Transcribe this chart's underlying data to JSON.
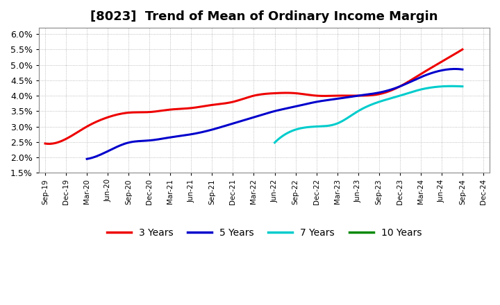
{
  "title": "[8023]  Trend of Mean of Ordinary Income Margin",
  "title_fontsize": 13,
  "background_color": "#ffffff",
  "plot_bg_color": "#ffffff",
  "grid_color": "#aaaaaa",
  "ylim": [
    0.015,
    0.062
  ],
  "yticks": [
    0.015,
    0.02,
    0.025,
    0.03,
    0.035,
    0.04,
    0.045,
    0.05,
    0.055,
    0.06
  ],
  "ytick_labels": [
    "1.5%",
    "2.0%",
    "2.5%",
    "3.0%",
    "3.5%",
    "4.0%",
    "4.5%",
    "5.0%",
    "5.5%",
    "6.0%"
  ],
  "x_labels": [
    "Sep-19",
    "Dec-19",
    "Mar-20",
    "Jun-20",
    "Sep-20",
    "Dec-20",
    "Mar-21",
    "Jun-21",
    "Sep-21",
    "Dec-21",
    "Mar-22",
    "Jun-22",
    "Sep-22",
    "Dec-22",
    "Mar-23",
    "Jun-23",
    "Sep-23",
    "Dec-23",
    "Mar-24",
    "Jun-24",
    "Sep-24",
    "Dec-24"
  ],
  "series": {
    "3 Years": {
      "color": "#ee0000",
      "data_x": [
        0,
        1,
        2,
        3,
        4,
        5,
        6,
        7,
        8,
        9,
        10,
        11,
        12,
        13,
        14,
        15,
        16,
        17,
        18,
        19,
        20
      ],
      "data_y": [
        0.0245,
        0.026,
        0.03,
        0.033,
        0.0345,
        0.0347,
        0.0355,
        0.036,
        0.037,
        0.038,
        0.04,
        0.0408,
        0.0408,
        0.04,
        0.04,
        0.04,
        0.0405,
        0.043,
        0.047,
        0.051,
        0.055
      ]
    },
    "5 Years": {
      "color": "#0000cc",
      "data_x": [
        2,
        3,
        4,
        5,
        6,
        7,
        8,
        9,
        10,
        11,
        12,
        13,
        14,
        15,
        16,
        17,
        18,
        19,
        20
      ],
      "data_y": [
        0.0195,
        0.022,
        0.0248,
        0.0255,
        0.0265,
        0.0275,
        0.029,
        0.031,
        0.033,
        0.035,
        0.0365,
        0.038,
        0.039,
        0.04,
        0.041,
        0.043,
        0.046,
        0.0482,
        0.0485
      ]
    },
    "7 Years": {
      "color": "#00cccc",
      "data_x": [
        11,
        12,
        13,
        14,
        15,
        16,
        17,
        18,
        19,
        20
      ],
      "data_y": [
        0.0248,
        0.029,
        0.03,
        0.031,
        0.035,
        0.038,
        0.04,
        0.042,
        0.043,
        0.043
      ]
    },
    "10 Years": {
      "color": "#008800",
      "data_x": [],
      "data_y": []
    }
  },
  "legend_labels": [
    "3 Years",
    "5 Years",
    "7 Years",
    "10 Years"
  ],
  "legend_colors": [
    "#ee0000",
    "#0000cc",
    "#00cccc",
    "#008800"
  ]
}
